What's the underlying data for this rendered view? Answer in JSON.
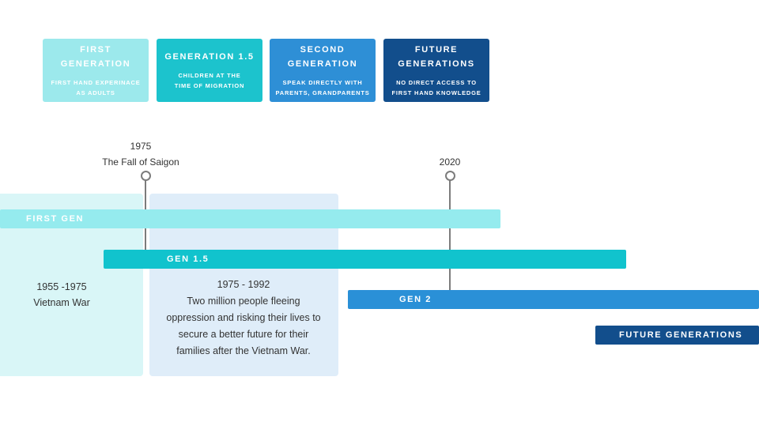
{
  "legend": [
    {
      "title": "FIRST GENERATION",
      "desc": "FIRST HAND EXPERINACE AS ADULTS",
      "color": "#9ce9ec"
    },
    {
      "title": "GENERATION 1.5",
      "desc": "CHILDREN AT THE TIME OF MIGRATION",
      "color": "#1cc3cd"
    },
    {
      "title": "SECOND GENERATION",
      "desc": "SPEAK DIRECTLY WITH PARENTS, GRANDPARENTS",
      "color": "#2e8fd6"
    },
    {
      "title": "FUTURE GENERATIONS",
      "desc": "NO DIRECT ACCESS TO FIRST HAND KNOWLEDGE",
      "color": "#124e8c"
    }
  ],
  "markers": [
    {
      "year": "1975",
      "label": "The Fall of Saigon"
    },
    {
      "year": "2020",
      "label": ""
    }
  ],
  "eras": [
    {
      "range": "1955 -1975",
      "label": "Vietnam War"
    },
    {
      "range": "1975 - 1992",
      "label": "Two million people fleeing oppression and risking their lives to secure a better future for their families  after the Vietnam War."
    }
  ],
  "bars": [
    {
      "label": "FIRST GEN",
      "color": "#95ebee"
    },
    {
      "label": "GEN 1.5",
      "color": "#11c3cd"
    },
    {
      "label": "GEN 2",
      "color": "#2a90d7"
    },
    {
      "label": "FUTURE GENERATIONS",
      "color": "#124e8c"
    }
  ]
}
